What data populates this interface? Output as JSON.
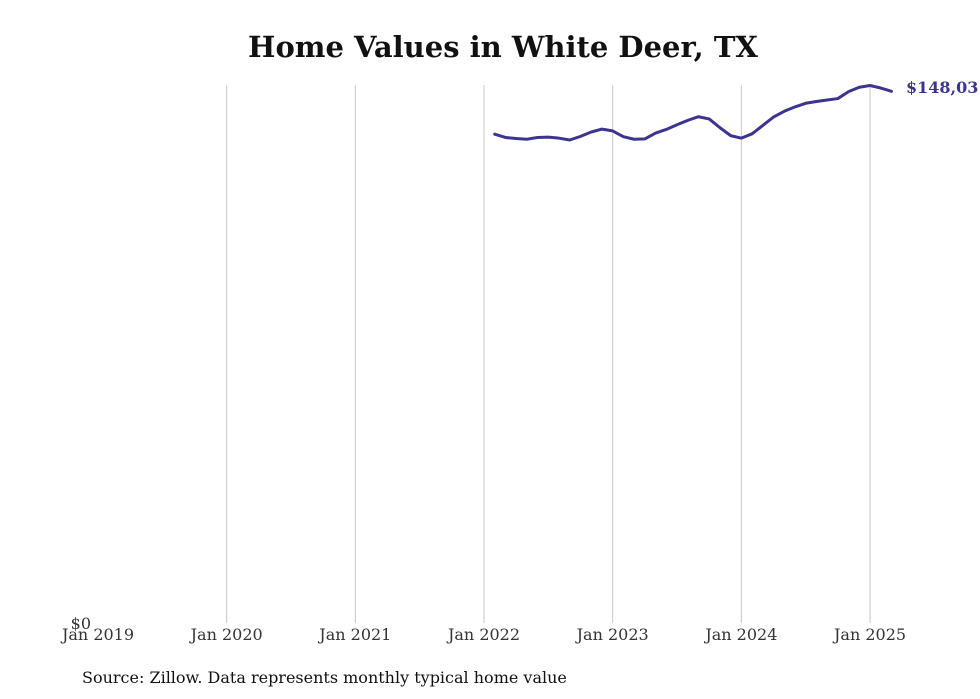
{
  "chart_data": {
    "type": "line",
    "title": "Home Values in White Deer, TX",
    "xlabel": "",
    "ylabel": "",
    "x_ticks": [
      "Jan 2019",
      "Jan 2020",
      "Jan 2021",
      "Jan 2022",
      "Jan 2023",
      "Jan 2024",
      "Jan 2025"
    ],
    "y_ticks": [
      "$0"
    ],
    "ylim": [
      0,
      148031
    ],
    "grid": "vertical",
    "line_color": "#3b3591",
    "end_label": "$148,03",
    "series": [
      {
        "x": [
          "2022-02",
          "2022-03",
          "2022-04",
          "2022-05",
          "2022-06",
          "2022-07",
          "2022-08",
          "2022-09",
          "2022-10",
          "2022-11",
          "2022-12",
          "2023-01",
          "2023-02",
          "2023-03",
          "2023-04",
          "2023-05",
          "2023-06",
          "2023-07",
          "2023-08",
          "2023-09",
          "2023-10",
          "2023-11",
          "2023-12",
          "2024-01",
          "2024-02",
          "2024-03",
          "2024-04",
          "2024-05",
          "2024-06",
          "2024-07",
          "2024-08",
          "2024-09",
          "2024-10",
          "2024-11",
          "2024-12",
          "2025-01",
          "2025-02",
          "2025-03"
        ],
        "values": [
          134500,
          133600,
          133300,
          133100,
          133600,
          133700,
          133400,
          132900,
          133900,
          135100,
          135900,
          135400,
          133800,
          133100,
          133200,
          134800,
          135800,
          137100,
          138300,
          139300,
          138700,
          136300,
          134100,
          133400,
          134600,
          136900,
          139200,
          140800,
          142000,
          143000,
          143500,
          143900,
          144300,
          146200,
          147400,
          147900,
          147200,
          146300
        ]
      }
    ]
  },
  "source": "Source: Zillow. Data represents monthly typical home value"
}
